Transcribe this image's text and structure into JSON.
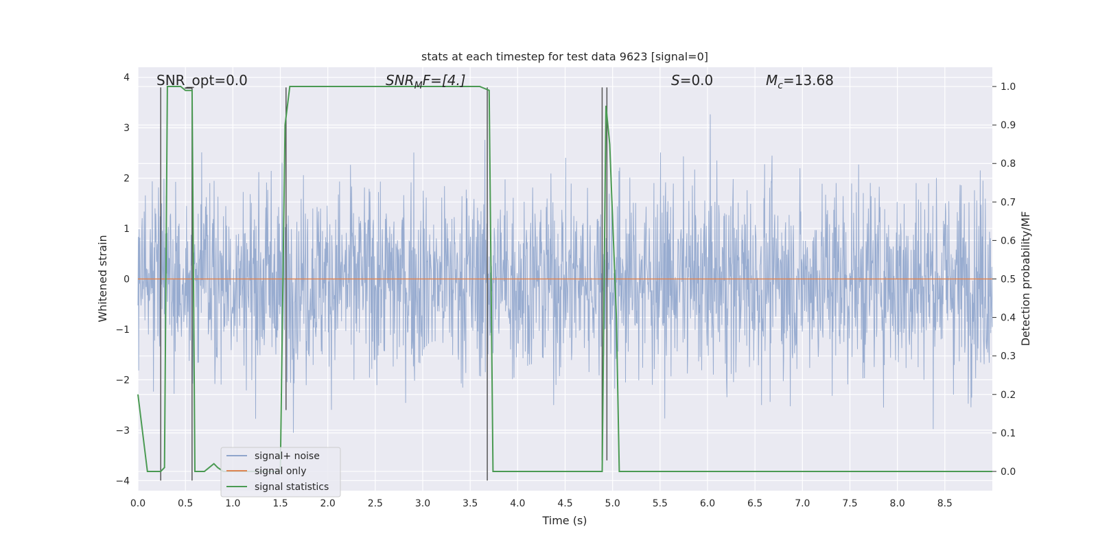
{
  "chart_data": {
    "type": "line",
    "title": "stats at each timestep for test data 9623 [signal=0]",
    "xlabel": "Time (s)",
    "ylabel_left": "Whitened strain",
    "ylabel_right": "Detection probability/MF",
    "xlim": [
      0.0,
      9.0
    ],
    "ylim_left": [
      -4.2,
      4.2
    ],
    "ylim_right": [
      -0.05,
      1.05
    ],
    "x_ticks": [
      "0.0",
      "0.5",
      "1.0",
      "1.5",
      "2.0",
      "2.5",
      "3.0",
      "3.5",
      "4.0",
      "4.5",
      "5.0",
      "5.5",
      "6.0",
      "6.5",
      "7.0",
      "7.5",
      "8.0",
      "8.5"
    ],
    "y_ticks_left": [
      "4",
      "3",
      "2",
      "1",
      "0",
      "−1",
      "−2",
      "−3",
      "−4"
    ],
    "y_ticks_right": [
      "1.0",
      "0.9",
      "0.8",
      "0.7",
      "0.6",
      "0.5",
      "0.4",
      "0.3",
      "0.2",
      "0.1",
      "0.0"
    ],
    "grid": true,
    "legend_position": "lower-left",
    "series": [
      {
        "name": "signal+ noise",
        "color": "#8fa5cc",
        "kind": "noise",
        "amplitude_range": [
          -4.0,
          3.8
        ]
      },
      {
        "name": "signal only",
        "color": "#dd8452",
        "kind": "constant",
        "value": 0.0
      },
      {
        "name": "signal statistics",
        "color": "#4a9a52",
        "axis": "right",
        "x": [
          0.0,
          0.05,
          0.1,
          0.18,
          0.24,
          0.28,
          0.31,
          0.35,
          0.45,
          0.5,
          0.55,
          0.57,
          0.6,
          0.63,
          0.7,
          0.75,
          0.8,
          0.84,
          0.9,
          1.0,
          1.5,
          1.55,
          1.6,
          3.6,
          3.7,
          3.74,
          3.8,
          4.89,
          4.93,
          4.97,
          5.04,
          5.07,
          9.0
        ],
        "values": [
          0.2,
          0.1,
          0.0,
          0.0,
          0.0,
          0.01,
          1.0,
          1.0,
          1.0,
          0.99,
          0.99,
          0.99,
          0.0,
          0.0,
          0.0,
          0.01,
          0.02,
          0.01,
          0.0,
          0.0,
          0.0,
          0.9,
          1.0,
          1.0,
          0.99,
          0.0,
          0.0,
          0.0,
          0.95,
          0.85,
          0.4,
          0.0,
          0.0
        ]
      }
    ],
    "vertical_lines": [
      {
        "x": 0.24,
        "y_top": 3.8,
        "y_bottom": -4.0
      },
      {
        "x": 0.57,
        "y_top": 3.8,
        "y_bottom": -4.0
      },
      {
        "x": 1.56,
        "y_top": 3.8,
        "y_bottom": -2.6
      },
      {
        "x": 3.68,
        "y_top": 3.8,
        "y_bottom": -4.0
      },
      {
        "x": 4.89,
        "y_top": 3.8,
        "y_bottom": -3.6
      },
      {
        "x": 4.94,
        "y_top": 3.8,
        "y_bottom": -3.6
      }
    ],
    "annotations": [
      {
        "id": "snr-opt",
        "text": "SNR_opt=0.0"
      },
      {
        "id": "snr-mf",
        "main": "SNR",
        "sub": "M",
        "rest": "F=[4.]"
      },
      {
        "id": "s-stat",
        "main": "S",
        "rest": "=0.0"
      },
      {
        "id": "mc",
        "main": "M",
        "sub": "c",
        "rest": "=13.68"
      }
    ]
  }
}
